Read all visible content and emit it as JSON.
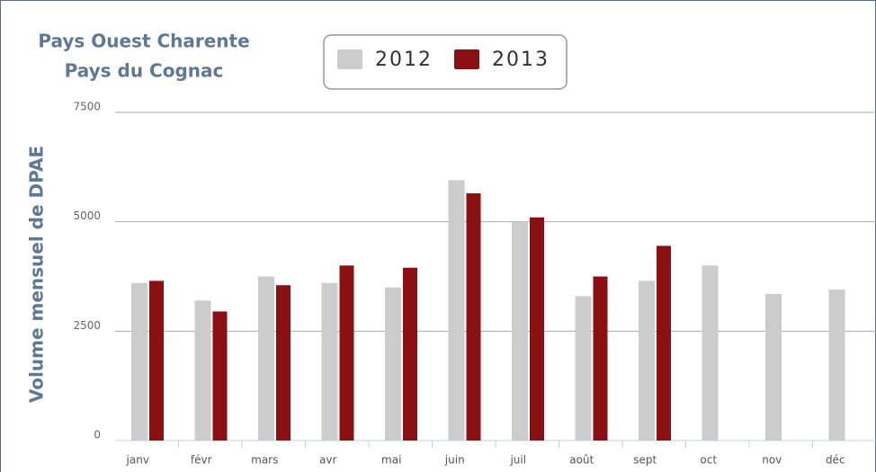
{
  "chart_data": {
    "type": "bar",
    "title": [
      "Pays Ouest Charente",
      "Pays du Cognac"
    ],
    "y_label": "Volume mensuel de DPAE",
    "categories": [
      "janv",
      "févr",
      "mars",
      "avr",
      "mai",
      "juin",
      "juil",
      "août",
      "sept",
      "oct",
      "nov",
      "déc"
    ],
    "series": [
      {
        "name": "2012",
        "color": "#cccccc",
        "values": [
          3600,
          3200,
          3750,
          3600,
          3500,
          5950,
          5000,
          3300,
          3650,
          4000,
          3350,
          3450
        ]
      },
      {
        "name": "2013",
        "color": "#8b1014",
        "values": [
          3650,
          2950,
          3550,
          4000,
          3950,
          5650,
          5100,
          3750,
          4450,
          null,
          null,
          null
        ]
      }
    ],
    "ylim": [
      0,
      7500
    ],
    "yticks": [
      0,
      2500,
      5000,
      7500
    ],
    "grid": true,
    "legend": "top"
  }
}
